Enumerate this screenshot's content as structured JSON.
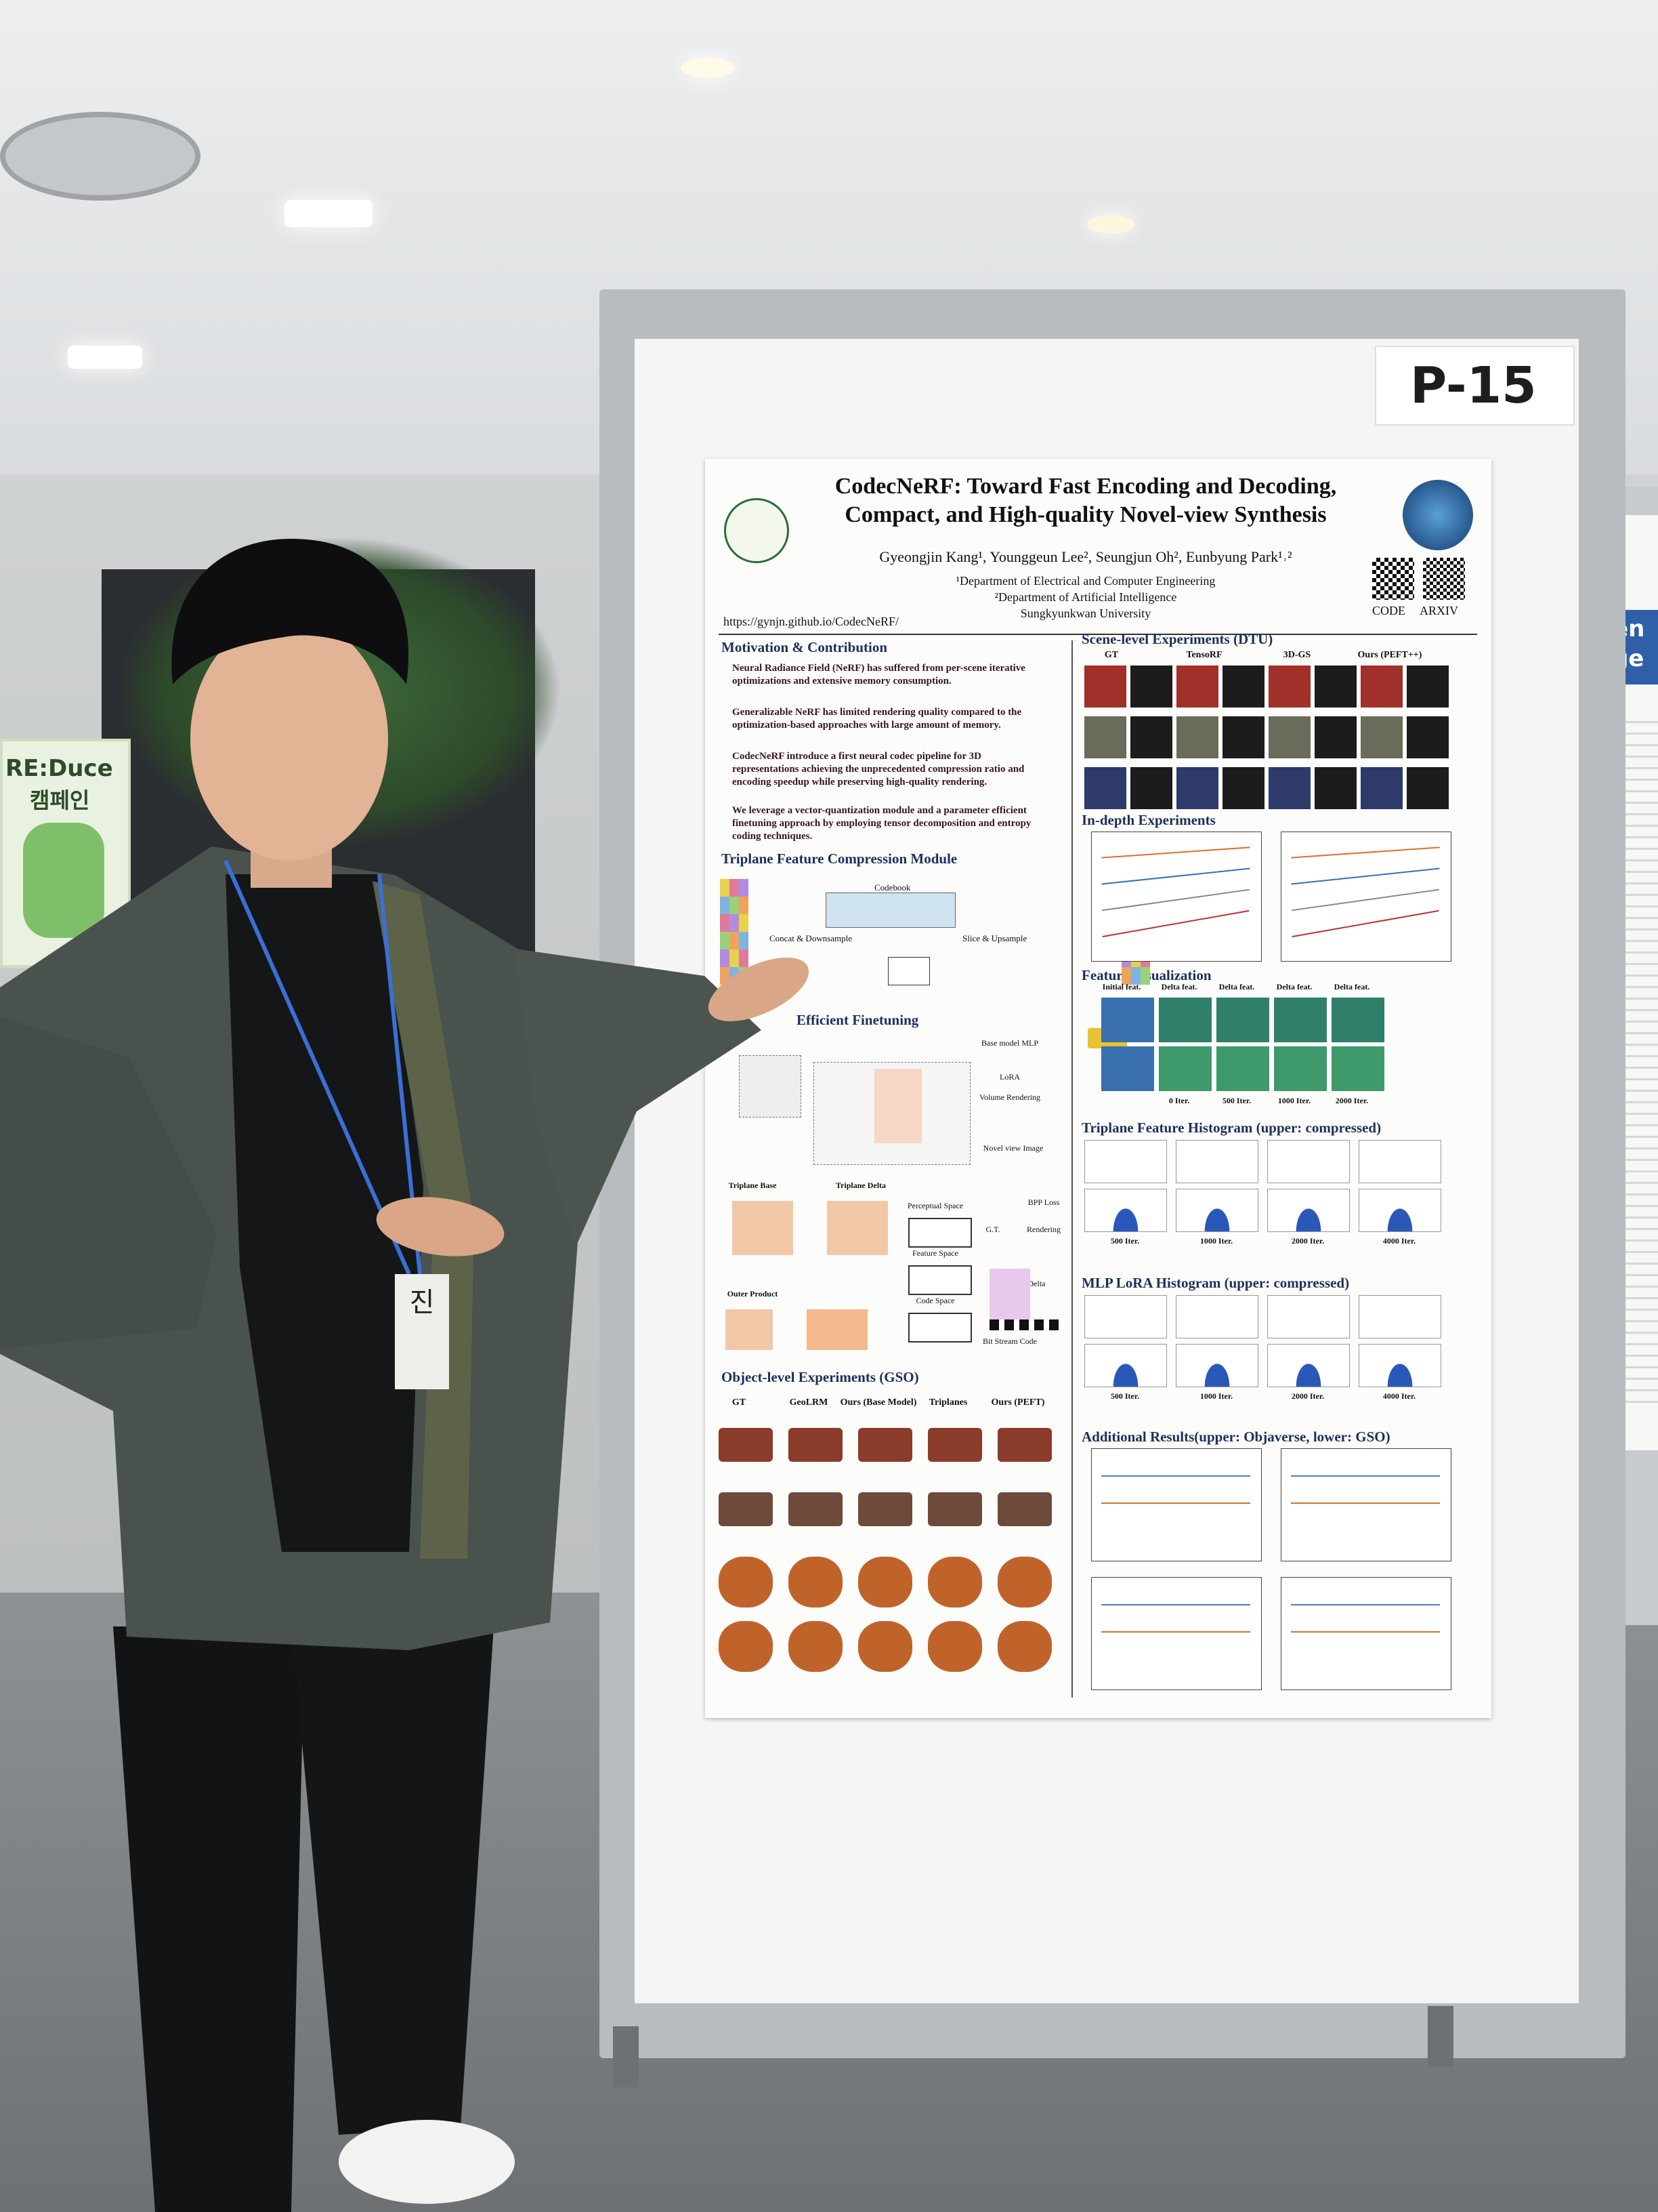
{
  "background_sign": {
    "title": "RE:Duce",
    "subtitle": "캠페인"
  },
  "board_label": "P-15",
  "poster": {
    "title_lines": [
      "CodecNeRF: Toward Fast Encoding and Decoding,",
      "Compact, and High-quality Novel-view Synthesis"
    ],
    "authors": "Gyeongjin Kang¹,   Younggeun Lee²,   Seungjun Oh²,   Eunbyung Park¹˒²",
    "affiliations": [
      "¹Department of Electrical and Computer Engineering",
      "²Department of Artificial Intelligence",
      "Sungkyunkwan University"
    ],
    "url": "https://gynjn.github.io/CodecNeRF/",
    "qr_labels": [
      "CODE",
      "ARXIV"
    ],
    "motivation": {
      "heading": "Motivation & Contribution",
      "bullets": [
        "Neural Radiance Field (NeRF) has suffered from per-scene iterative optimizations and extensive memory consumption.",
        "Generalizable NeRF has limited rendering quality compared to the optimization-based approaches with large amount of memory.",
        "CodecNeRF introduce a first neural codec pipeline for 3D representations achieving the unprecedented compression ratio and encoding speedup while preserving high-quality rendering.",
        "We leverage a vector-quantization module and a parameter efficient finetuning approach by employing tensor decomposition and entropy coding techniques."
      ]
    },
    "compression": {
      "heading": "Triplane Feature Compression Module",
      "labels": [
        "Codebook",
        "Concat & Downsample",
        "Slice & Upsample"
      ]
    },
    "finetuning": {
      "heading": "Efficient Finetuning",
      "labels": [
        "Base model MLP",
        "LoRA",
        "Volume Rendering",
        "Novel view Image",
        "Triplane Base",
        "Triplane Delta",
        "Outer Product",
        "Perceptual Space",
        "Feature Space",
        "Code Space",
        "BPP Loss",
        "G.T.",
        "Rendering",
        "Feature Delta",
        "Bit Stream Code"
      ]
    },
    "object_level": {
      "heading": "Object-level Experiments (GSO)",
      "columns": [
        "GT",
        "GeoLRM",
        "Ours (Base Model)",
        "Triplanes",
        "Ours (PEFT)"
      ]
    },
    "scene_level": {
      "heading": "Scene-level Experiments (DTU)",
      "columns": [
        "GT",
        "TensoRF",
        "3D-GS",
        "Ours (PEFT++)"
      ]
    },
    "in_depth": {
      "heading": "In-depth Experiments"
    },
    "feature_vis": {
      "heading": "Feature Visualization",
      "columns": [
        "Initial feat.",
        "Delta feat.",
        "Delta feat.",
        "Delta feat.",
        "Delta feat."
      ],
      "iters": [
        "0 Iter.",
        "500 Iter.",
        "1000 Iter.",
        "2000 Iter."
      ]
    },
    "triplane_hist": {
      "heading": "Triplane Feature Histogram (upper: compressed)",
      "iters": [
        "500 Iter.",
        "1000 Iter.",
        "2000 Iter.",
        "4000 Iter."
      ]
    },
    "lora_hist": {
      "heading": "MLP LoRA Histogram (upper: compressed)",
      "iters": [
        "500 Iter.",
        "1000 Iter.",
        "2000 Iter.",
        "4000 Iter."
      ]
    },
    "additional": {
      "heading": "Additional Results(upper: Objaverse, lower: GSO)"
    }
  },
  "right_poster": {
    "title_fragments": [
      "xt-Driven",
      "via Large"
    ]
  },
  "name_tag": "진"
}
